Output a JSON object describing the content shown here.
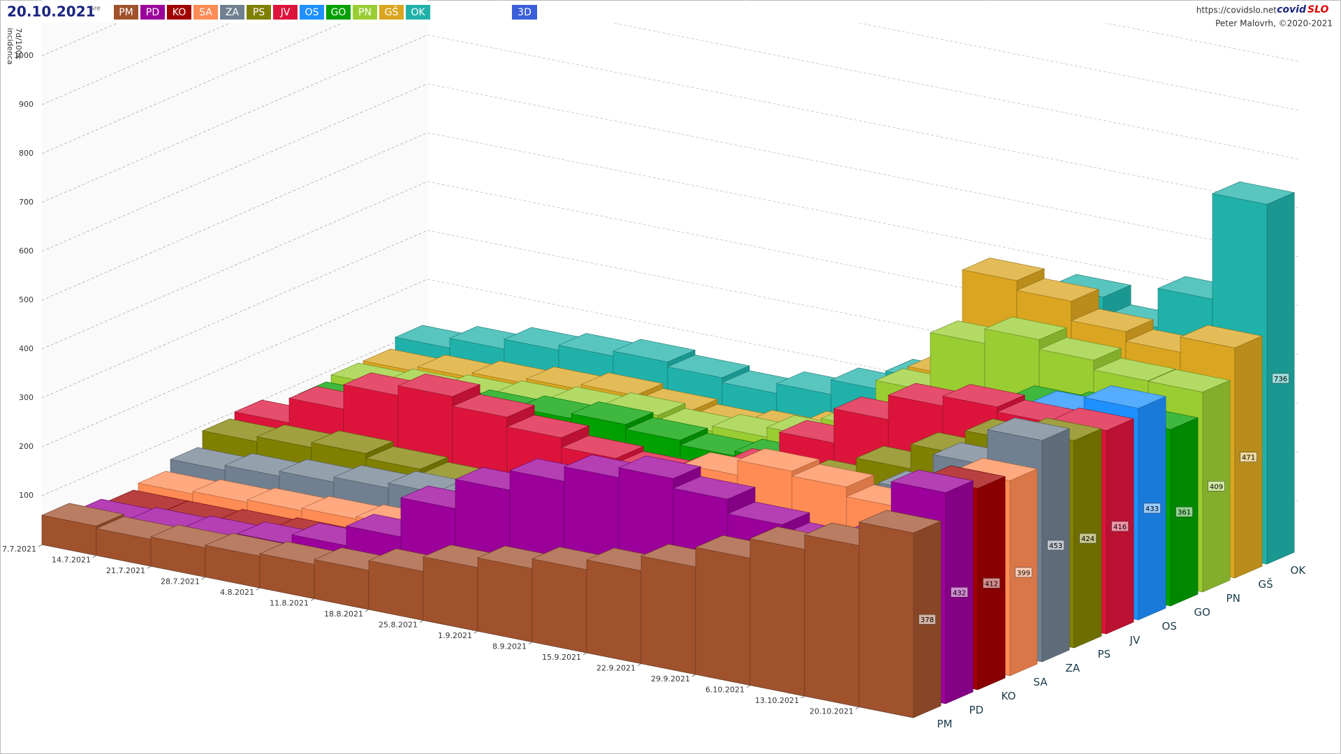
{
  "chart_data": {
    "type": "bar3d",
    "title": "20.10.2021",
    "subtitle": "sre",
    "mode_button": "3D",
    "source_url": "https://covidslo.net",
    "brand_1": "covid",
    "brand_2": "SLO",
    "credit": "Peter Malovrh, ©2020-2021",
    "y_label": [
      "7d/100k",
      "incidenca"
    ],
    "ylim": [
      0,
      1100
    ],
    "yticks": [
      100,
      200,
      300,
      400,
      500,
      600,
      700,
      800,
      900,
      1000
    ],
    "grid": true,
    "categories": [
      "7.7.2021",
      "14.7.2021",
      "21.7.2021",
      "28.7.2021",
      "4.8.2021",
      "11.8.2021",
      "18.8.2021",
      "25.8.2021",
      "1.9.2021",
      "8.9.2021",
      "15.9.2021",
      "22.9.2021",
      "29.9.2021",
      "6.10.2021",
      "13.10.2021",
      "20.10.2021"
    ],
    "series": [
      {
        "name": "PM",
        "color": "#a0522d",
        "values": [
          60,
          55,
          60,
          65,
          70,
          80,
          100,
          130,
          150,
          170,
          190,
          220,
          260,
          300,
          330,
          378
        ]
      },
      {
        "name": "PD",
        "color": "#9b009b",
        "values": [
          40,
          45,
          50,
          60,
          80,
          120,
          200,
          260,
          300,
          330,
          350,
          330,
          300,
          280,
          300,
          432
        ]
      },
      {
        "name": "KO",
        "color": "#a00000",
        "values": [
          30,
          30,
          35,
          40,
          45,
          50,
          55,
          60,
          70,
          80,
          90,
          100,
          130,
          200,
          300,
          412
        ]
      },
      {
        "name": "SA",
        "color": "#ff8c55",
        "values": [
          40,
          45,
          50,
          55,
          60,
          80,
          100,
          130,
          180,
          250,
          300,
          330,
          320,
          300,
          260,
          399
        ]
      },
      {
        "name": "ZA",
        "color": "#708090",
        "values": [
          60,
          70,
          80,
          90,
          100,
          110,
          120,
          130,
          140,
          160,
          180,
          220,
          260,
          300,
          380,
          453
        ]
      },
      {
        "name": "PS",
        "color": "#808000",
        "values": [
          90,
          100,
          110,
          100,
          90,
          80,
          90,
          100,
          120,
          150,
          200,
          250,
          300,
          350,
          400,
          424
        ]
      },
      {
        "name": "JV",
        "color": "#dc143c",
        "values": [
          100,
          150,
          200,
          220,
          200,
          180,
          160,
          150,
          160,
          200,
          280,
          350,
          400,
          420,
          410,
          416
        ]
      },
      {
        "name": "OS",
        "color": "#1e90ff",
        "values": [
          50,
          60,
          70,
          80,
          100,
          110,
          100,
          90,
          100,
          120,
          150,
          200,
          280,
          350,
          400,
          433
        ]
      },
      {
        "name": "GO",
        "color": "#00a000",
        "values": [
          80,
          100,
          120,
          130,
          140,
          150,
          140,
          130,
          140,
          160,
          200,
          280,
          330,
          360,
          370,
          361
        ]
      },
      {
        "name": "PN",
        "color": "#9acd32",
        "values": [
          90,
          100,
          110,
          120,
          130,
          140,
          130,
          140,
          160,
          200,
          300,
          420,
          450,
          430,
          410,
          409
        ]
      },
      {
        "name": "GŠ",
        "color": "#daa520",
        "values": [
          90,
          100,
          110,
          120,
          130,
          120,
          110,
          120,
          140,
          180,
          300,
          520,
          500,
          460,
          440,
          471
        ]
      },
      {
        "name": "OK",
        "color": "#20b2aa",
        "values": [
          110,
          130,
          150,
          160,
          170,
          160,
          150,
          170,
          200,
          240,
          300,
          420,
          480,
          440,
          520,
          736
        ]
      }
    ]
  }
}
